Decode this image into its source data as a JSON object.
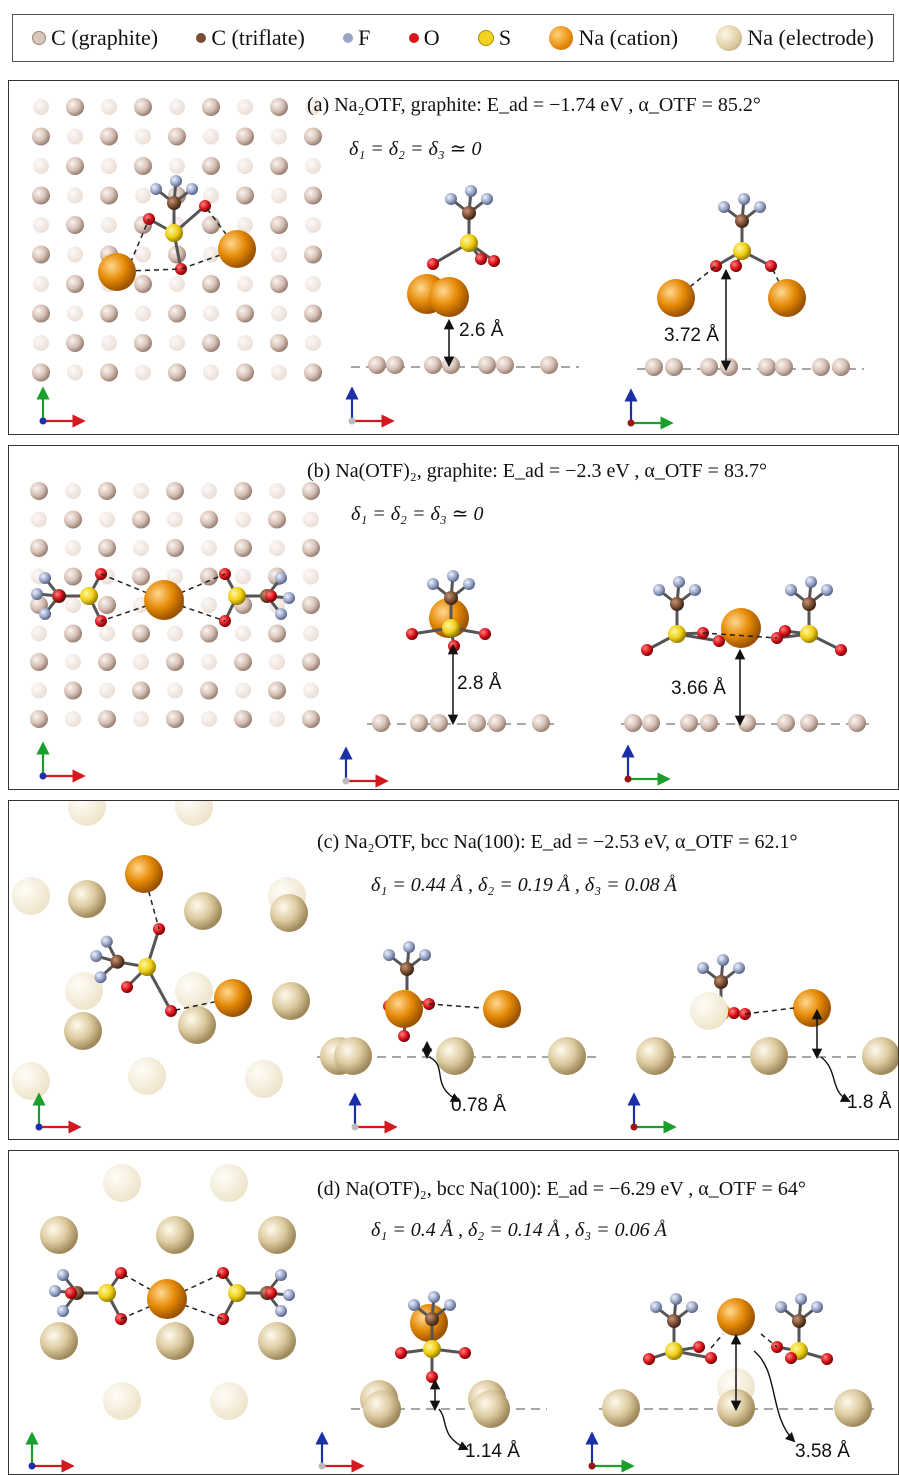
{
  "legend": [
    {
      "label": "C (graphite)",
      "color": "#d9c6bc",
      "size": 12
    },
    {
      "label": "C (triflate)",
      "color": "#7a4e34",
      "size": 10
    },
    {
      "label": "F",
      "color": "#9aa6c8",
      "size": 10
    },
    {
      "label": "O",
      "color": "#d9151b",
      "size": 10
    },
    {
      "label": "S",
      "color": "#f1d21e",
      "size": 13
    },
    {
      "label": "Na (cation)",
      "color": "#e68a07",
      "size": 24
    },
    {
      "label": "Na (electrode)",
      "color": "#dccba0",
      "size": 26
    }
  ],
  "panels": [
    {
      "id": "a",
      "title": "(a) Na₂OTF,  graphite:  E_ad = −1.74 eV  ,  α_OTF = 85.2°",
      "subtitle": "δ₁ = δ₂ = δ₃ ≃ 0",
      "dist1": "2.6 Å",
      "dist2": "3.72 Å"
    },
    {
      "id": "b",
      "title": "(b) Na(OTF)₂,  graphite:  E_ad = −2.3 eV  ,  α_OTF = 83.7°",
      "subtitle": "δ₁ = δ₂ = δ₃ ≃ 0",
      "dist1": "2.8 Å",
      "dist2": "3.66 Å"
    },
    {
      "id": "c",
      "title": "(c)  Na₂OTF, bcc Na(100):  E_ad = −2.53 eV,  α_OTF = 62.1°",
      "subtitle": "δ₁ = 0.44 Å   ,  δ₂ = 0.19 Å  ,   δ₃ = 0.08 Å",
      "dist1": "0.78 Å",
      "dist2": "1.8 Å"
    },
    {
      "id": "d",
      "title": "(d)  Na(OTF)₂, bcc Na(100):  E_ad = −6.29 eV , α_OTF = 64°",
      "subtitle": "δ₁ = 0.4 Å   ,  δ₂ = 0.14 Å  ,   δ₃ = 0.06 Å",
      "dist1": "1.14 Å",
      "dist2": "3.58 Å"
    }
  ],
  "colors": {
    "graphite": "#d9c6bc",
    "triflate_c": "#7a4e34",
    "f": "#9aa6c8",
    "o": "#d9151b",
    "s": "#f1d21e",
    "na_cation": "#e68a07",
    "na_electrode": "#dccba0",
    "axis_x": "#d4181f",
    "axis_y_top": "#1a9e2c",
    "axis_z": "#1a2fa8"
  }
}
